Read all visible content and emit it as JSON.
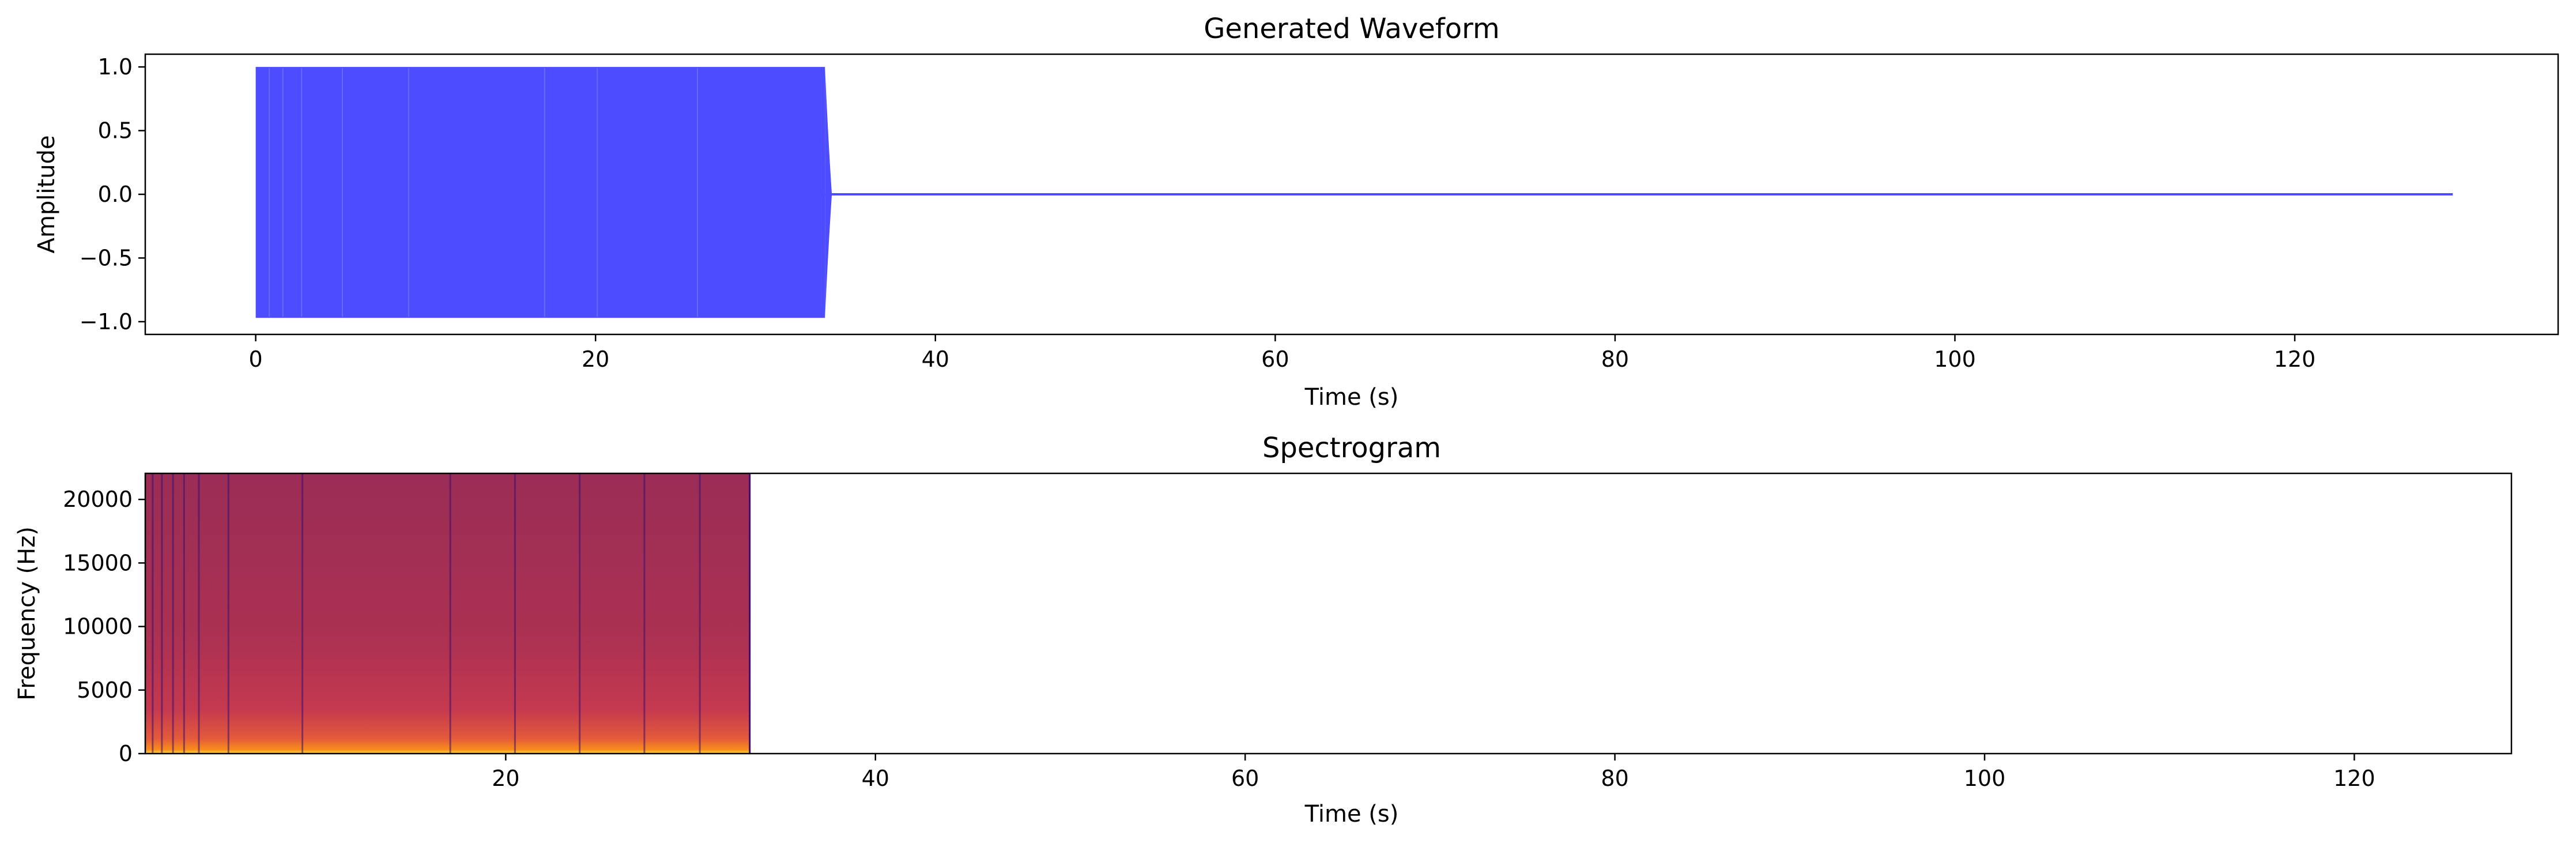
{
  "chart_data": [
    {
      "type": "line",
      "title": "Generated Waveform",
      "xlabel": "Time (s)",
      "ylabel": "Amplitude",
      "xlim": [
        -6.5,
        135.5
      ],
      "ylim": [
        -1.1,
        1.1
      ],
      "xticks": [
        0,
        20,
        40,
        60,
        80,
        100,
        120
      ],
      "xtick_labels": [
        "0",
        "20",
        "40",
        "60",
        "80",
        "100",
        "120"
      ],
      "yticks": [
        1.0,
        0.5,
        0.0,
        -0.5,
        -1.0
      ],
      "ytick_labels": [
        "1.0",
        "0.5",
        "0.0",
        "−0.5",
        "−1.0"
      ],
      "grid": false,
      "series": [
        {
          "color": "#4d4dff",
          "active_segment": {
            "x_start": 0,
            "x_end": 33.5,
            "amplitude_min": -0.97,
            "amplitude_max": 1.0
          },
          "silent_segment": {
            "x_start": 33.5,
            "x_end": 129.3,
            "value": 0.0
          }
        }
      ]
    },
    {
      "type": "heatmap",
      "title": "Spectrogram",
      "xlabel": "Time (s)",
      "ylabel": "Frequency (Hz)",
      "xlim": [
        0.5,
        128.5
      ],
      "ylim": [
        0,
        22050
      ],
      "xticks": [
        20,
        40,
        60,
        80,
        100,
        120
      ],
      "xtick_labels": [
        "20",
        "40",
        "60",
        "80",
        "100",
        "120"
      ],
      "yticks": [
        0,
        5000,
        10000,
        15000,
        20000
      ],
      "ytick_labels": [
        "0",
        "5000",
        "10000",
        "15000",
        "20000"
      ],
      "colormap": "inferno",
      "filled_region": {
        "x_start": 0.5,
        "x_end": 33.2,
        "y_start": 0,
        "y_end": 22050
      },
      "band_colors": [
        {
          "y": 0,
          "color": "#fcdd3e"
        },
        {
          "y": 300,
          "color": "#f98d1b"
        },
        {
          "y": 1200,
          "color": "#e35a3b"
        },
        {
          "y": 3500,
          "color": "#c4394f"
        },
        {
          "y": 9000,
          "color": "#ac3152"
        },
        {
          "y": 22050,
          "color": "#9a2d56"
        }
      ],
      "grid": false
    }
  ]
}
